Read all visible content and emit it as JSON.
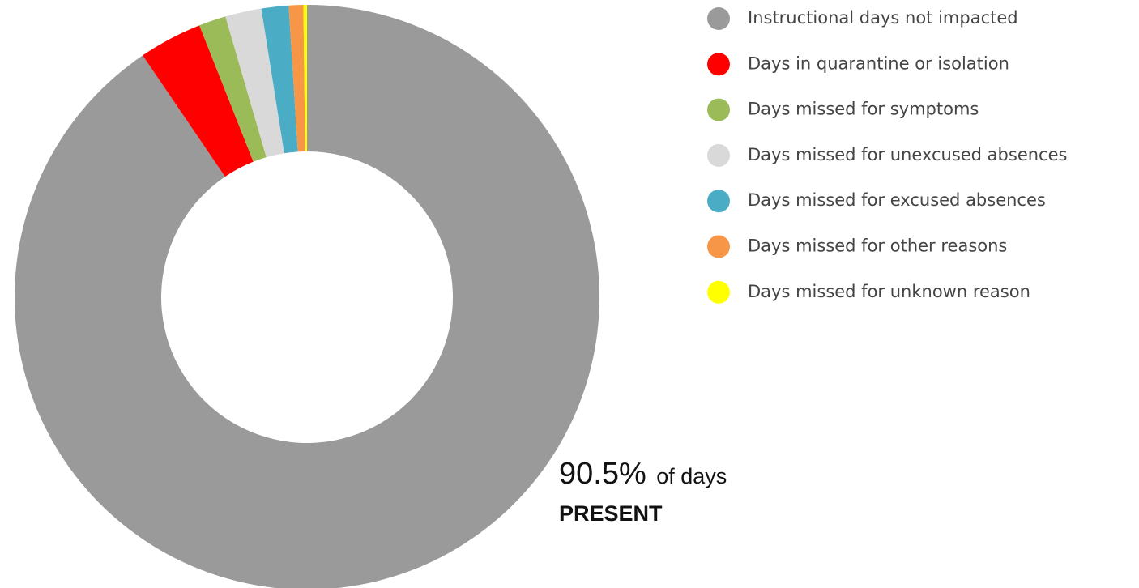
{
  "chart_data": {
    "type": "donut",
    "categories": [
      "Instructional days not impacted",
      "Days in quarantine or isolation",
      "Days missed for symptoms",
      "Days missed for unexcused absences",
      "Days missed for excused absences",
      "Days missed for other reasons",
      "Days missed for unknown reason"
    ],
    "values": [
      90.5,
      3.5,
      1.5,
      2.0,
      1.5,
      0.8,
      0.2
    ],
    "value_labels": [
      "90.5%",
      null,
      null,
      null,
      null,
      null,
      null
    ],
    "colors": [
      "#9a9a9a",
      "#ff0000",
      "#9bbb59",
      "#d9d9d9",
      "#4bacc6",
      "#f79646",
      "#ffff00"
    ],
    "annotation_suffix": "of days",
    "annotation_label": "PRESENT",
    "legend": "right"
  }
}
